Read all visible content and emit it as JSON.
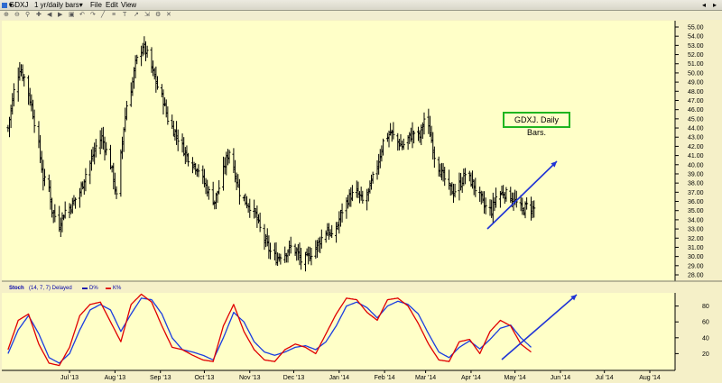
{
  "toolbar": {
    "symbol_menu": "GDXJ",
    "period_menu": "1 yr/daily bars",
    "file_menu": "File",
    "edit_menu": "Edit",
    "view_menu": "View"
  },
  "stoch_header": {
    "name": "Stoch",
    "params": "(14, 7, 7) Delayed",
    "d_label": "D%",
    "k_label": "K%"
  },
  "annotation": "GDXJ. Daily Bars.",
  "colors": {
    "background": "#f5f0c8",
    "plot_background": "#ffffc8",
    "price_bars": "#000000",
    "stoch_k": "#e00000",
    "stoch_d": "#1a3de0",
    "arrow": "#1f33d6",
    "annotation_border": "#1fb51f"
  },
  "chart_data": [
    {
      "type": "ohlc",
      "title": "GDXJ",
      "ylim": [
        28,
        55
      ],
      "ytick_labels": [
        "28.00",
        "29.00",
        "30.00",
        "31.00",
        "32.00",
        "33.00",
        "34.00",
        "35.00",
        "36.00",
        "37.00",
        "38.00",
        "39.00",
        "40.00",
        "41.00",
        "42.00",
        "43.00",
        "44.00",
        "45.00",
        "46.00",
        "47.00",
        "48.00",
        "49.00",
        "50.00",
        "51.00",
        "52.00",
        "53.00",
        "54.00",
        "55.00"
      ],
      "axis_side": "right",
      "grid": false,
      "close_key_points": [
        [
          "2013-06-03",
          44
        ],
        [
          "2013-06-07",
          48
        ],
        [
          "2013-06-11",
          50.5
        ],
        [
          "2013-06-14",
          49.5
        ],
        [
          "2013-06-19",
          46.5
        ],
        [
          "2013-06-24",
          42
        ],
        [
          "2013-06-27",
          38.5
        ],
        [
          "2013-07-01",
          37.5
        ],
        [
          "2013-07-03",
          35
        ],
        [
          "2013-07-08",
          33.5
        ],
        [
          "2013-07-12",
          35
        ],
        [
          "2013-07-16",
          35.5
        ],
        [
          "2013-07-22",
          37
        ],
        [
          "2013-07-26",
          39
        ],
        [
          "2013-07-30",
          40.5
        ],
        [
          "2013-08-02",
          42
        ],
        [
          "2013-08-06",
          43
        ],
        [
          "2013-08-09",
          41.5
        ],
        [
          "2013-08-12",
          40
        ],
        [
          "2013-08-14",
          38.5
        ],
        [
          "2013-08-16",
          36.5
        ],
        [
          "2013-08-19",
          41
        ],
        [
          "2013-08-21",
          44
        ],
        [
          "2013-08-23",
          46.5
        ],
        [
          "2013-08-27",
          49
        ],
        [
          "2013-08-29",
          51
        ],
        [
          "2013-09-03",
          53
        ],
        [
          "2013-09-06",
          52
        ],
        [
          "2013-09-10",
          50
        ],
        [
          "2013-09-13",
          48.5
        ],
        [
          "2013-09-17",
          47
        ],
        [
          "2013-09-20",
          45
        ],
        [
          "2013-09-25",
          43.5
        ],
        [
          "2013-09-30",
          42
        ],
        [
          "2013-10-03",
          41
        ],
        [
          "2013-10-08",
          40
        ],
        [
          "2013-10-11",
          39.5
        ],
        [
          "2013-10-15",
          38
        ],
        [
          "2013-10-18",
          37
        ],
        [
          "2013-10-22",
          36
        ],
        [
          "2013-10-25",
          37.5
        ],
        [
          "2013-10-29",
          40
        ],
        [
          "2013-11-01",
          41.5
        ],
        [
          "2013-11-05",
          39
        ],
        [
          "2013-11-08",
          37
        ],
        [
          "2013-11-12",
          36
        ],
        [
          "2013-11-15",
          35.5
        ],
        [
          "2013-11-19",
          34.5
        ],
        [
          "2013-11-22",
          33
        ],
        [
          "2013-11-26",
          31.5
        ],
        [
          "2013-11-29",
          30.5
        ],
        [
          "2013-12-03",
          29.8
        ],
        [
          "2013-12-06",
          30.2
        ],
        [
          "2013-12-10",
          30.5
        ],
        [
          "2013-12-13",
          31
        ],
        [
          "2013-12-17",
          30.5
        ],
        [
          "2013-12-20",
          29.5
        ],
        [
          "2013-12-24",
          29.8
        ],
        [
          "2013-12-30",
          31
        ],
        [
          "2014-01-03",
          32
        ],
        [
          "2014-01-07",
          33
        ],
        [
          "2014-01-10",
          32
        ],
        [
          "2014-01-14",
          33.5
        ],
        [
          "2014-01-17",
          35
        ],
        [
          "2014-01-22",
          36.5
        ],
        [
          "2014-01-27",
          37
        ],
        [
          "2014-01-31",
          36
        ],
        [
          "2014-02-04",
          37
        ],
        [
          "2014-02-07",
          38.5
        ],
        [
          "2014-02-11",
          40.5
        ],
        [
          "2014-02-14",
          42.5
        ],
        [
          "2014-02-19",
          43.5
        ],
        [
          "2014-02-24",
          42.5
        ],
        [
          "2014-02-27",
          42
        ],
        [
          "2014-03-04",
          43
        ],
        [
          "2014-03-07",
          43.5
        ],
        [
          "2014-03-11",
          43
        ],
        [
          "2014-03-14",
          45
        ],
        [
          "2014-03-18",
          43.5
        ],
        [
          "2014-03-21",
          41
        ],
        [
          "2014-03-26",
          39
        ],
        [
          "2014-03-31",
          37.5
        ],
        [
          "2014-04-03",
          37
        ],
        [
          "2014-04-08",
          38
        ],
        [
          "2014-04-11",
          39
        ],
        [
          "2014-04-16",
          38
        ],
        [
          "2014-04-21",
          36.5
        ],
        [
          "2014-04-24",
          35.5
        ],
        [
          "2014-04-29",
          35
        ],
        [
          "2014-05-02",
          36.5
        ],
        [
          "2014-05-07",
          37
        ],
        [
          "2014-05-12",
          36.5
        ],
        [
          "2014-05-15",
          36
        ],
        [
          "2014-05-20",
          35
        ],
        [
          "2014-05-23",
          35.5
        ],
        [
          "2014-05-28",
          35.2
        ]
      ]
    },
    {
      "type": "line",
      "title": "Stoch",
      "ylim": [
        0,
        100
      ],
      "ytick_labels": [
        "20",
        "40",
        "60",
        "80"
      ],
      "xtick_labels": [
        "Jul '13",
        "Aug '13",
        "Sep '13",
        "Oct '13",
        "Nov '13",
        "Dec '13",
        "Jan '14",
        "Feb '14",
        "Mar '14",
        "Apr '14",
        "May '14",
        "Jun '14",
        "Jul '14",
        "Aug '14"
      ],
      "series": [
        {
          "name": "D%",
          "points": [
            [
              "2013-06-03",
              20
            ],
            [
              "2013-06-10",
              50
            ],
            [
              "2013-06-17",
              68
            ],
            [
              "2013-06-24",
              45
            ],
            [
              "2013-07-01",
              15
            ],
            [
              "2013-07-08",
              8
            ],
            [
              "2013-07-15",
              20
            ],
            [
              "2013-07-22",
              50
            ],
            [
              "2013-07-29",
              75
            ],
            [
              "2013-08-05",
              82
            ],
            [
              "2013-08-12",
              75
            ],
            [
              "2013-08-19",
              48
            ],
            [
              "2013-08-26",
              70
            ],
            [
              "2013-09-02",
              90
            ],
            [
              "2013-09-09",
              88
            ],
            [
              "2013-09-16",
              70
            ],
            [
              "2013-09-23",
              40
            ],
            [
              "2013-09-30",
              25
            ],
            [
              "2013-10-07",
              22
            ],
            [
              "2013-10-14",
              18
            ],
            [
              "2013-10-21",
              12
            ],
            [
              "2013-10-28",
              40
            ],
            [
              "2013-11-04",
              72
            ],
            [
              "2013-11-11",
              60
            ],
            [
              "2013-11-18",
              35
            ],
            [
              "2013-11-25",
              22
            ],
            [
              "2013-12-02",
              18
            ],
            [
              "2013-12-09",
              22
            ],
            [
              "2013-12-16",
              28
            ],
            [
              "2013-12-23",
              30
            ],
            [
              "2013-12-30",
              25
            ],
            [
              "2014-01-06",
              35
            ],
            [
              "2014-01-13",
              55
            ],
            [
              "2014-01-20",
              80
            ],
            [
              "2014-01-27",
              85
            ],
            [
              "2014-02-03",
              78
            ],
            [
              "2014-02-10",
              65
            ],
            [
              "2014-02-17",
              80
            ],
            [
              "2014-02-24",
              86
            ],
            [
              "2014-03-03",
              82
            ],
            [
              "2014-03-10",
              70
            ],
            [
              "2014-03-17",
              45
            ],
            [
              "2014-03-24",
              22
            ],
            [
              "2014-03-31",
              15
            ],
            [
              "2014-04-07",
              28
            ],
            [
              "2014-04-14",
              36
            ],
            [
              "2014-04-21",
              26
            ],
            [
              "2014-04-28",
              38
            ],
            [
              "2014-05-05",
              52
            ],
            [
              "2014-05-12",
              56
            ],
            [
              "2014-05-19",
              40
            ],
            [
              "2014-05-26",
              28
            ]
          ]
        },
        {
          "name": "K%",
          "points": [
            [
              "2013-06-03",
              25
            ],
            [
              "2013-06-10",
              62
            ],
            [
              "2013-06-17",
              70
            ],
            [
              "2013-06-24",
              32
            ],
            [
              "2013-07-01",
              8
            ],
            [
              "2013-07-08",
              5
            ],
            [
              "2013-07-15",
              28
            ],
            [
              "2013-07-22",
              68
            ],
            [
              "2013-07-29",
              82
            ],
            [
              "2013-08-05",
              85
            ],
            [
              "2013-08-12",
              60
            ],
            [
              "2013-08-19",
              35
            ],
            [
              "2013-08-26",
              82
            ],
            [
              "2013-09-02",
              95
            ],
            [
              "2013-09-09",
              85
            ],
            [
              "2013-09-16",
              55
            ],
            [
              "2013-09-23",
              28
            ],
            [
              "2013-09-30",
              25
            ],
            [
              "2013-10-07",
              18
            ],
            [
              "2013-10-14",
              12
            ],
            [
              "2013-10-21",
              10
            ],
            [
              "2013-10-28",
              55
            ],
            [
              "2013-11-04",
              82
            ],
            [
              "2013-11-11",
              48
            ],
            [
              "2013-11-18",
              25
            ],
            [
              "2013-11-25",
              12
            ],
            [
              "2013-12-02",
              10
            ],
            [
              "2013-12-09",
              25
            ],
            [
              "2013-12-16",
              32
            ],
            [
              "2013-12-23",
              28
            ],
            [
              "2013-12-30",
              20
            ],
            [
              "2014-01-06",
              45
            ],
            [
              "2014-01-13",
              70
            ],
            [
              "2014-01-20",
              90
            ],
            [
              "2014-01-27",
              88
            ],
            [
              "2014-02-03",
              72
            ],
            [
              "2014-02-10",
              62
            ],
            [
              "2014-02-17",
              88
            ],
            [
              "2014-02-24",
              90
            ],
            [
              "2014-03-03",
              80
            ],
            [
              "2014-03-10",
              58
            ],
            [
              "2014-03-17",
              32
            ],
            [
              "2014-03-24",
              12
            ],
            [
              "2014-03-31",
              10
            ],
            [
              "2014-04-07",
              35
            ],
            [
              "2014-04-14",
              38
            ],
            [
              "2014-04-21",
              20
            ],
            [
              "2014-04-28",
              48
            ],
            [
              "2014-05-05",
              62
            ],
            [
              "2014-05-12",
              55
            ],
            [
              "2014-05-19",
              32
            ],
            [
              "2014-05-26",
              22
            ]
          ]
        }
      ]
    }
  ]
}
